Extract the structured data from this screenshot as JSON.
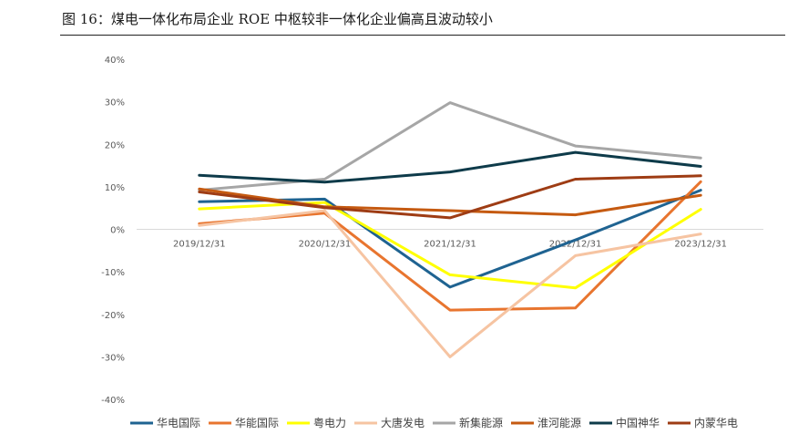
{
  "figure": {
    "title": "图 16：煤电一体化布局企业 ROE 中枢较非一体化企业偏高且波动较小"
  },
  "chart_data": {
    "type": "line",
    "title": "",
    "xlabel": "",
    "ylabel": "",
    "categories": [
      "2019/12/31",
      "2020/12/31",
      "2021/12/31",
      "2022/12/31",
      "2023/12/31"
    ],
    "ylim": [
      -0.4,
      0.4
    ],
    "yticks": [
      -0.4,
      -0.3,
      -0.2,
      -0.1,
      0.0,
      0.1,
      0.2,
      0.3,
      0.4
    ],
    "ytick_labels": [
      "-40%",
      "-30%",
      "-20%",
      "-10%",
      "0%",
      "10%",
      "20%",
      "30%",
      "40%"
    ],
    "grid": false,
    "legend_position": "bottom",
    "series": [
      {
        "name": "华电国际",
        "color": "#1f6391",
        "values": [
          0.065,
          0.071,
          -0.136,
          -0.025,
          0.092
        ]
      },
      {
        "name": "华能国际",
        "color": "#e8752f",
        "values": [
          0.013,
          0.038,
          -0.19,
          -0.185,
          0.112
        ]
      },
      {
        "name": "粤电力",
        "color": "#ffff00",
        "values": [
          0.048,
          0.063,
          -0.107,
          -0.138,
          0.047
        ]
      },
      {
        "name": "大唐发电",
        "color": "#f6c4a2",
        "values": [
          0.009,
          0.044,
          -0.3,
          -0.062,
          -0.011
        ]
      },
      {
        "name": "新集能源",
        "color": "#a6a6a6",
        "values": [
          0.092,
          0.118,
          0.298,
          0.196,
          0.168
        ]
      },
      {
        "name": "淮河能源",
        "color": "#c55a11",
        "values": [
          0.095,
          0.053,
          0.044,
          0.034,
          0.08
        ]
      },
      {
        "name": "中国神华",
        "color": "#0e3b4a",
        "values": [
          0.127,
          0.111,
          0.135,
          0.181,
          0.148
        ]
      },
      {
        "name": "内蒙华电",
        "color": "#9e3c14",
        "values": [
          0.088,
          0.051,
          0.027,
          0.118,
          0.126
        ]
      }
    ]
  }
}
